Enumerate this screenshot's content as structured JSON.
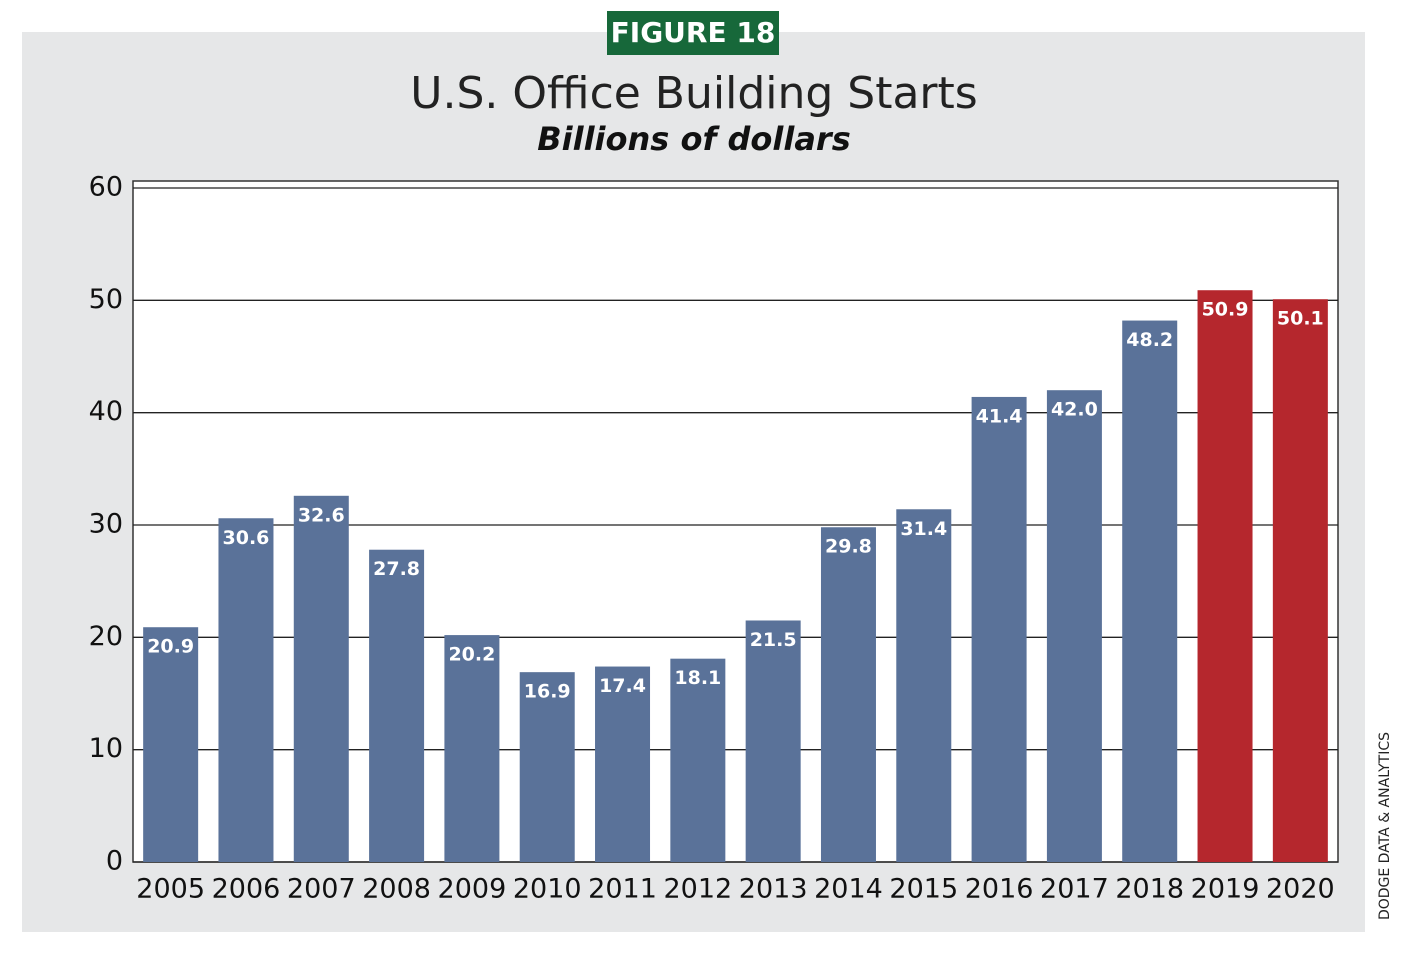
{
  "badge": "FIGURE 18",
  "source": "DODGE DATA & ANALYTICS",
  "chart_data": {
    "type": "bar",
    "title": "U.S. Office Building Starts",
    "subtitle": "Billions of dollars",
    "categories": [
      "2005",
      "2006",
      "2007",
      "2008",
      "2009",
      "2010",
      "2011",
      "2012",
      "2013",
      "2014",
      "2015",
      "2016",
      "2017",
      "2018",
      "2019",
      "2020"
    ],
    "values": [
      20.9,
      30.6,
      32.6,
      27.8,
      20.2,
      16.9,
      17.4,
      18.1,
      21.5,
      29.8,
      31.4,
      41.4,
      42.0,
      48.2,
      50.9,
      50.1
    ],
    "value_labels": [
      "20.9",
      "30.6",
      "32.6",
      "27.8",
      "20.2",
      "16.9",
      "17.4",
      "18.1",
      "21.5",
      "29.8",
      "31.4",
      "41.4",
      "42.0",
      "48.2",
      "50.9",
      "50.1"
    ],
    "colors": [
      "#5a7299",
      "#5a7299",
      "#5a7299",
      "#5a7299",
      "#5a7299",
      "#5a7299",
      "#5a7299",
      "#5a7299",
      "#5a7299",
      "#5a7299",
      "#5a7299",
      "#5a7299",
      "#5a7299",
      "#5a7299",
      "#b5272d",
      "#b5272d"
    ],
    "ylim": [
      0,
      60
    ],
    "yticks": [
      0,
      10,
      20,
      30,
      40,
      50,
      60
    ],
    "grid": true
  }
}
